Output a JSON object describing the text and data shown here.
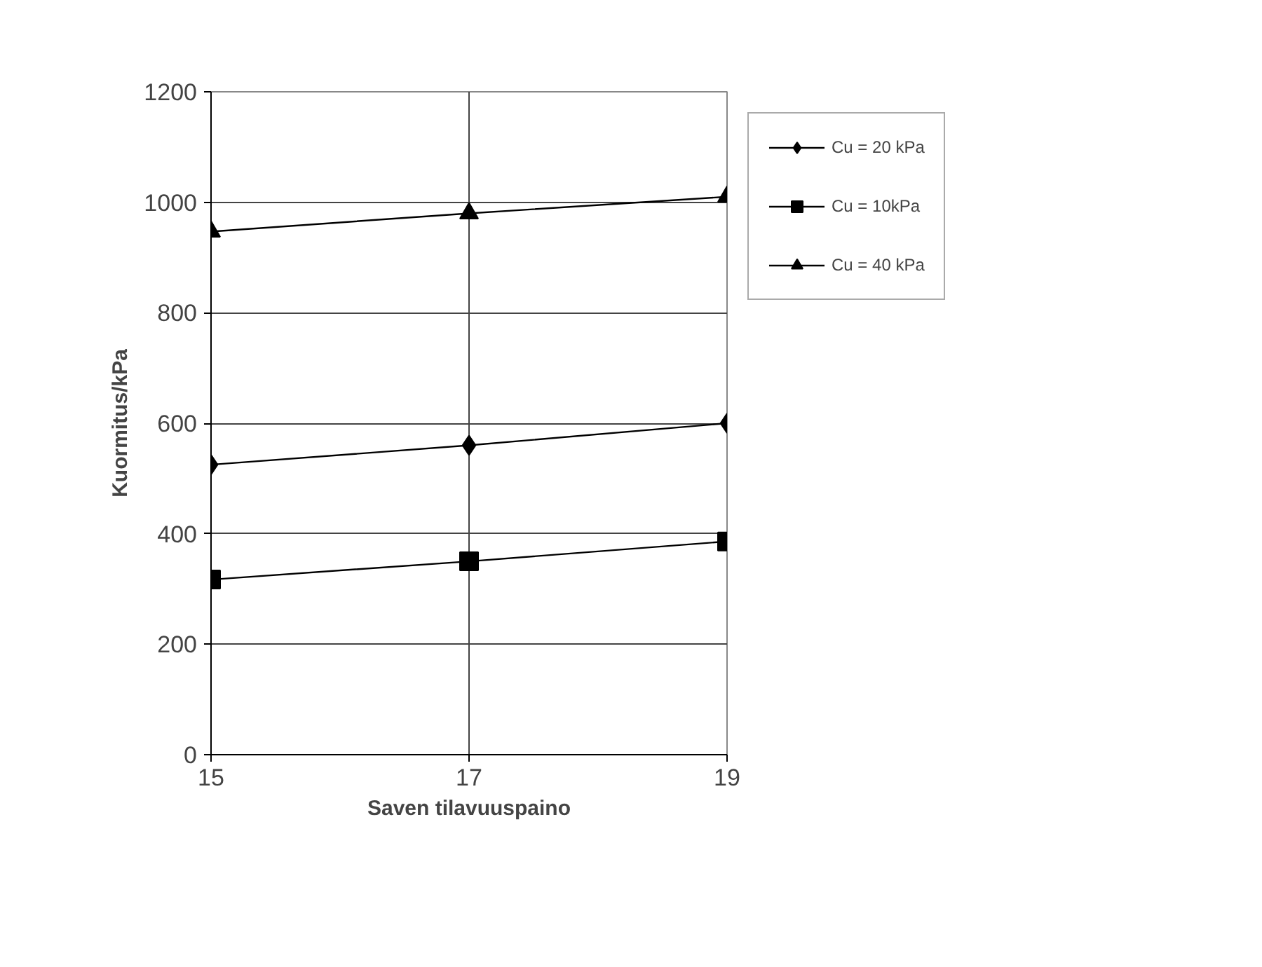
{
  "chart_data": {
    "type": "line",
    "xlabel": "Saven tilavuuspaino",
    "ylabel": "Kuormitus/kPa",
    "x": [
      15,
      17,
      19
    ],
    "xlim": [
      15,
      19
    ],
    "xticks": [
      15,
      17,
      19
    ],
    "ylim": [
      0,
      1200
    ],
    "yticks": [
      0,
      200,
      400,
      600,
      800,
      1000,
      1200
    ],
    "grid": true,
    "legend": "top right",
    "line_style": "solid",
    "series": [
      {
        "name": "Cu = 20 kPa",
        "color": "#000000",
        "marker": "diamond",
        "values": [
          525,
          560,
          600
        ]
      },
      {
        "name": "Cu = 10kPa",
        "color": "#000000",
        "marker": "square",
        "values": [
          317,
          350,
          386
        ]
      },
      {
        "name": "Cu = 40 kPa",
        "color": "#000000",
        "marker": "triangle",
        "values": [
          947,
          980,
          1010
        ]
      }
    ]
  }
}
